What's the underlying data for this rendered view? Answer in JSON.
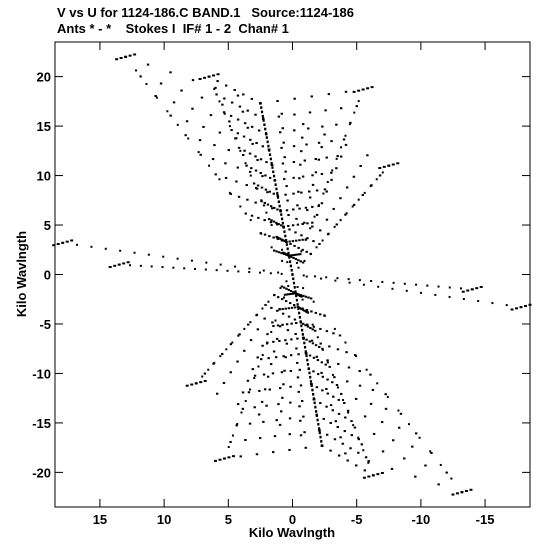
{
  "header": {
    "line1": "V vs U for 1124-186.C BAND.1   Source:1124-186",
    "line2": "Ants * - *    Stokes I  IF# 1 - 2  Chan# 1"
  },
  "chart_data": {
    "type": "scatter",
    "title": "V vs U for 1124-186.C BAND.1   Source:1124-186",
    "subtitle": "Ants * - *    Stokes I  IF# 1 - 2  Chan# 1",
    "xlabel": "Kilo Wavlngth",
    "ylabel": "Kilo Wavlngth",
    "xlim": [
      18.5,
      -18.5
    ],
    "ylim": [
      -23.5,
      23.5
    ],
    "x_inverted": true,
    "xticks": [
      15,
      10,
      5,
      0,
      -5,
      -10,
      -15
    ],
    "yticks": [
      20,
      15,
      10,
      5,
      0,
      -5,
      -10,
      -15,
      -20
    ],
    "xtick_labels": [
      "15",
      "10",
      "5",
      "0",
      "-5",
      "-10",
      "-15"
    ],
    "ytick_labels": [
      "20",
      "15",
      "10",
      "5",
      "0",
      "-5",
      "-10",
      "-15",
      "-20"
    ],
    "grid": false,
    "marker_color": "#000000",
    "coverage": {
      "arm_ends": [
        {
          "u": 2.5,
          "v": 17.3
        },
        {
          "u": -5.5,
          "v": 18.7
        },
        {
          "u": 13.0,
          "v": 22.0
        },
        {
          "u": 6.5,
          "v": 20.0
        },
        {
          "u": -7.5,
          "v": 11.0
        },
        {
          "u": -17.8,
          "v": -3.3
        },
        {
          "u": -14.0,
          "v": -1.5
        },
        {
          "u": 17.9,
          "v": 3.2
        },
        {
          "u": 13.5,
          "v": 1.0
        },
        {
          "u": -2.3,
          "v": -17.3
        },
        {
          "u": -13.2,
          "v": -22.0
        },
        {
          "u": -6.3,
          "v": -20.3
        },
        {
          "u": 5.3,
          "v": -18.6
        },
        {
          "u": 7.5,
          "v": -11.0
        }
      ],
      "spoke_positions": [
        1.0,
        0.91,
        0.82,
        0.73,
        0.64,
        0.55,
        0.46,
        0.37,
        0.28,
        0.19,
        0.11
      ]
    }
  }
}
